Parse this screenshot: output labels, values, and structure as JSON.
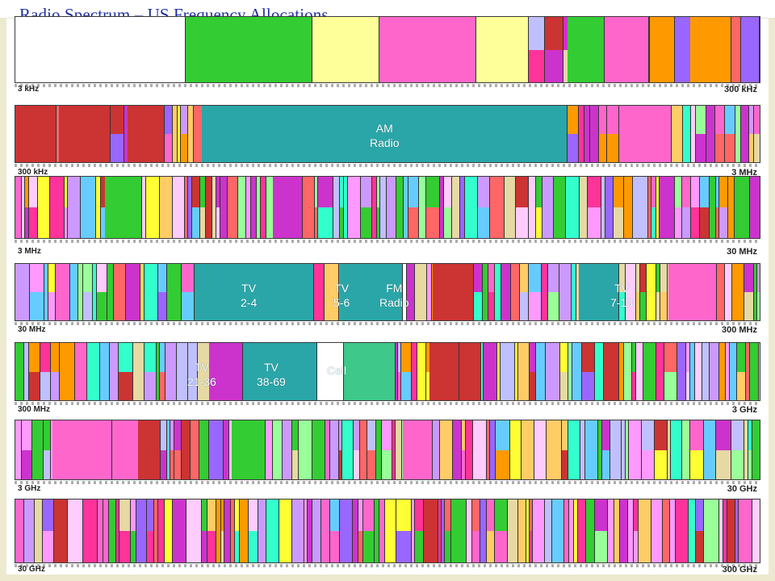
{
  "title": "Radio Spectrum – US Frequency Allocations . . .",
  "colors": {
    "title": "#1f2fa0",
    "frame": "#ece9cf",
    "tv_fm_broadcast": "#2aa6a8",
    "cellular": "#3ec98a",
    "mobile": "#ff66cc",
    "fixed": "#cc33cc",
    "radionavigation": "#33cc33",
    "maritime": "#e6d9a3",
    "aeronautical": "#66ccff",
    "amateur": "#ffff33",
    "radio_astronomy": "#cc3333",
    "satellite": "#9966ff",
    "broadcasting": "#ff9900"
  },
  "chart_data": {
    "type": "spectrum allocation chart",
    "rows": [
      {
        "start_label": "",
        "end_label": "300 kHz"
      },
      {
        "start_label": "3 kHz",
        "end_label": "3 MHz"
      },
      {
        "start_label": "300 kHz",
        "end_label": "30 MHz"
      },
      {
        "start_label": "3 MHz",
        "end_label": "300 MHz"
      },
      {
        "start_label": "30 MHz",
        "end_label": "3 GHz"
      },
      {
        "start_label": "300 MHz",
        "end_label": "30 GHz"
      },
      {
        "start_label": "3 GHz",
        "end_label": "300 GHz"
      },
      {
        "start_label": "30 GHz",
        "end_label": ""
      }
    ],
    "callouts": [
      {
        "row": 1,
        "lines": [
          "AM",
          "Radio"
        ]
      },
      {
        "row": 3,
        "lines": [
          "TV",
          "2-4"
        ]
      },
      {
        "row": 3,
        "lines": [
          "TV",
          "5-6"
        ]
      },
      {
        "row": 3,
        "lines": [
          "FM",
          "Radio"
        ]
      },
      {
        "row": 3,
        "lines": [
          "TV",
          "7-13"
        ]
      },
      {
        "row": 4,
        "lines": [
          "TV",
          "21-36"
        ]
      },
      {
        "row": 4,
        "lines": [
          "TV",
          "38-69"
        ]
      },
      {
        "row": 4,
        "lines": [
          "Cell"
        ]
      }
    ]
  }
}
